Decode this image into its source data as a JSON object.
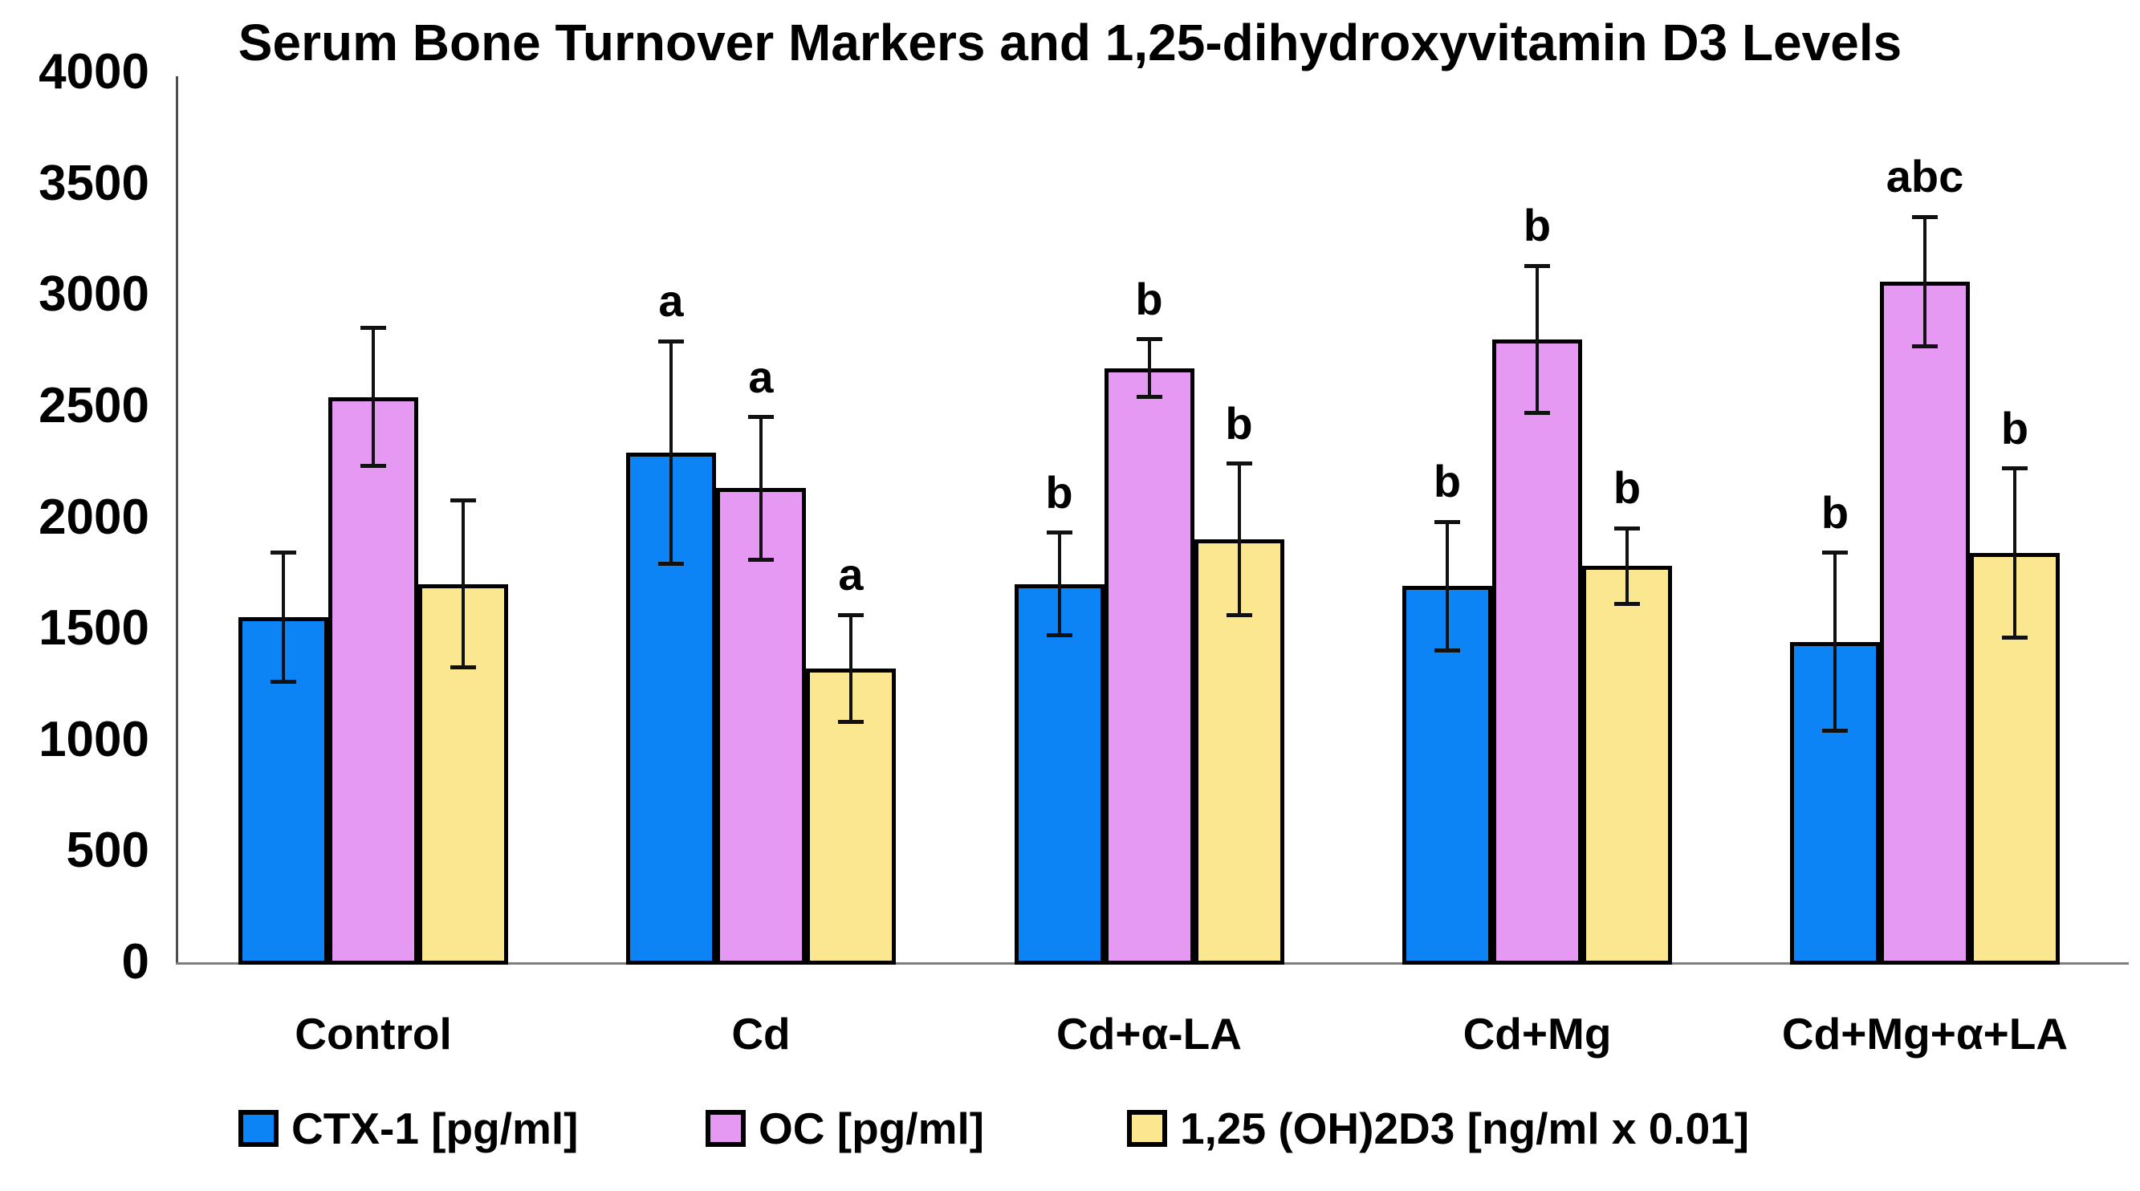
{
  "chart_data": {
    "type": "bar",
    "title": "Serum Bone Turnover Markers and 1,25-dihydroxyvitamin D3 Levels",
    "categories": [
      "Control",
      "Cd",
      "Cd+α-LA",
      "Cd+Mg",
      "Cd+Mg+α+LA"
    ],
    "series": [
      {
        "key": "ctx-1",
        "name": "CTX-1 [pg/ml]",
        "color": "#0d84f5",
        "values": [
          1550,
          2290,
          1700,
          1690,
          1440
        ],
        "errors": [
          290,
          500,
          230,
          290,
          400
        ],
        "sig_letters": [
          "",
          "a",
          "b",
          "b",
          "b"
        ]
      },
      {
        "key": "oc",
        "name": "OC [pg/ml]",
        "color": "#e699f2",
        "values": [
          2540,
          2130,
          2670,
          2800,
          3060
        ],
        "errors": [
          310,
          320,
          130,
          330,
          290
        ],
        "sig_letters": [
          "",
          "a",
          "b",
          "b",
          "abc"
        ]
      },
      {
        "key": "d3",
        "name": "1,25 (OH)2D3 [ng/ml x 0.01]",
        "color": "#fae78f",
        "values": [
          1700,
          1320,
          1900,
          1780,
          1840
        ],
        "errors": [
          375,
          240,
          340,
          170,
          380
        ],
        "sig_letters": [
          "",
          "a",
          "b",
          "b",
          "b"
        ]
      }
    ],
    "ylim": [
      0,
      4000
    ],
    "ytick_step": 500,
    "ytick_labels": [
      "0",
      "500",
      "1000",
      "1500",
      "2000",
      "2500",
      "3000",
      "3500",
      "4000"
    ],
    "grid": false,
    "legend_position": "bottom",
    "bar_border_color": "#000000",
    "error_bar_color": "#111111",
    "axis_line_color": "#4d4d4d",
    "baseline_color": "#7f7f7f",
    "text_color": "#000000"
  }
}
